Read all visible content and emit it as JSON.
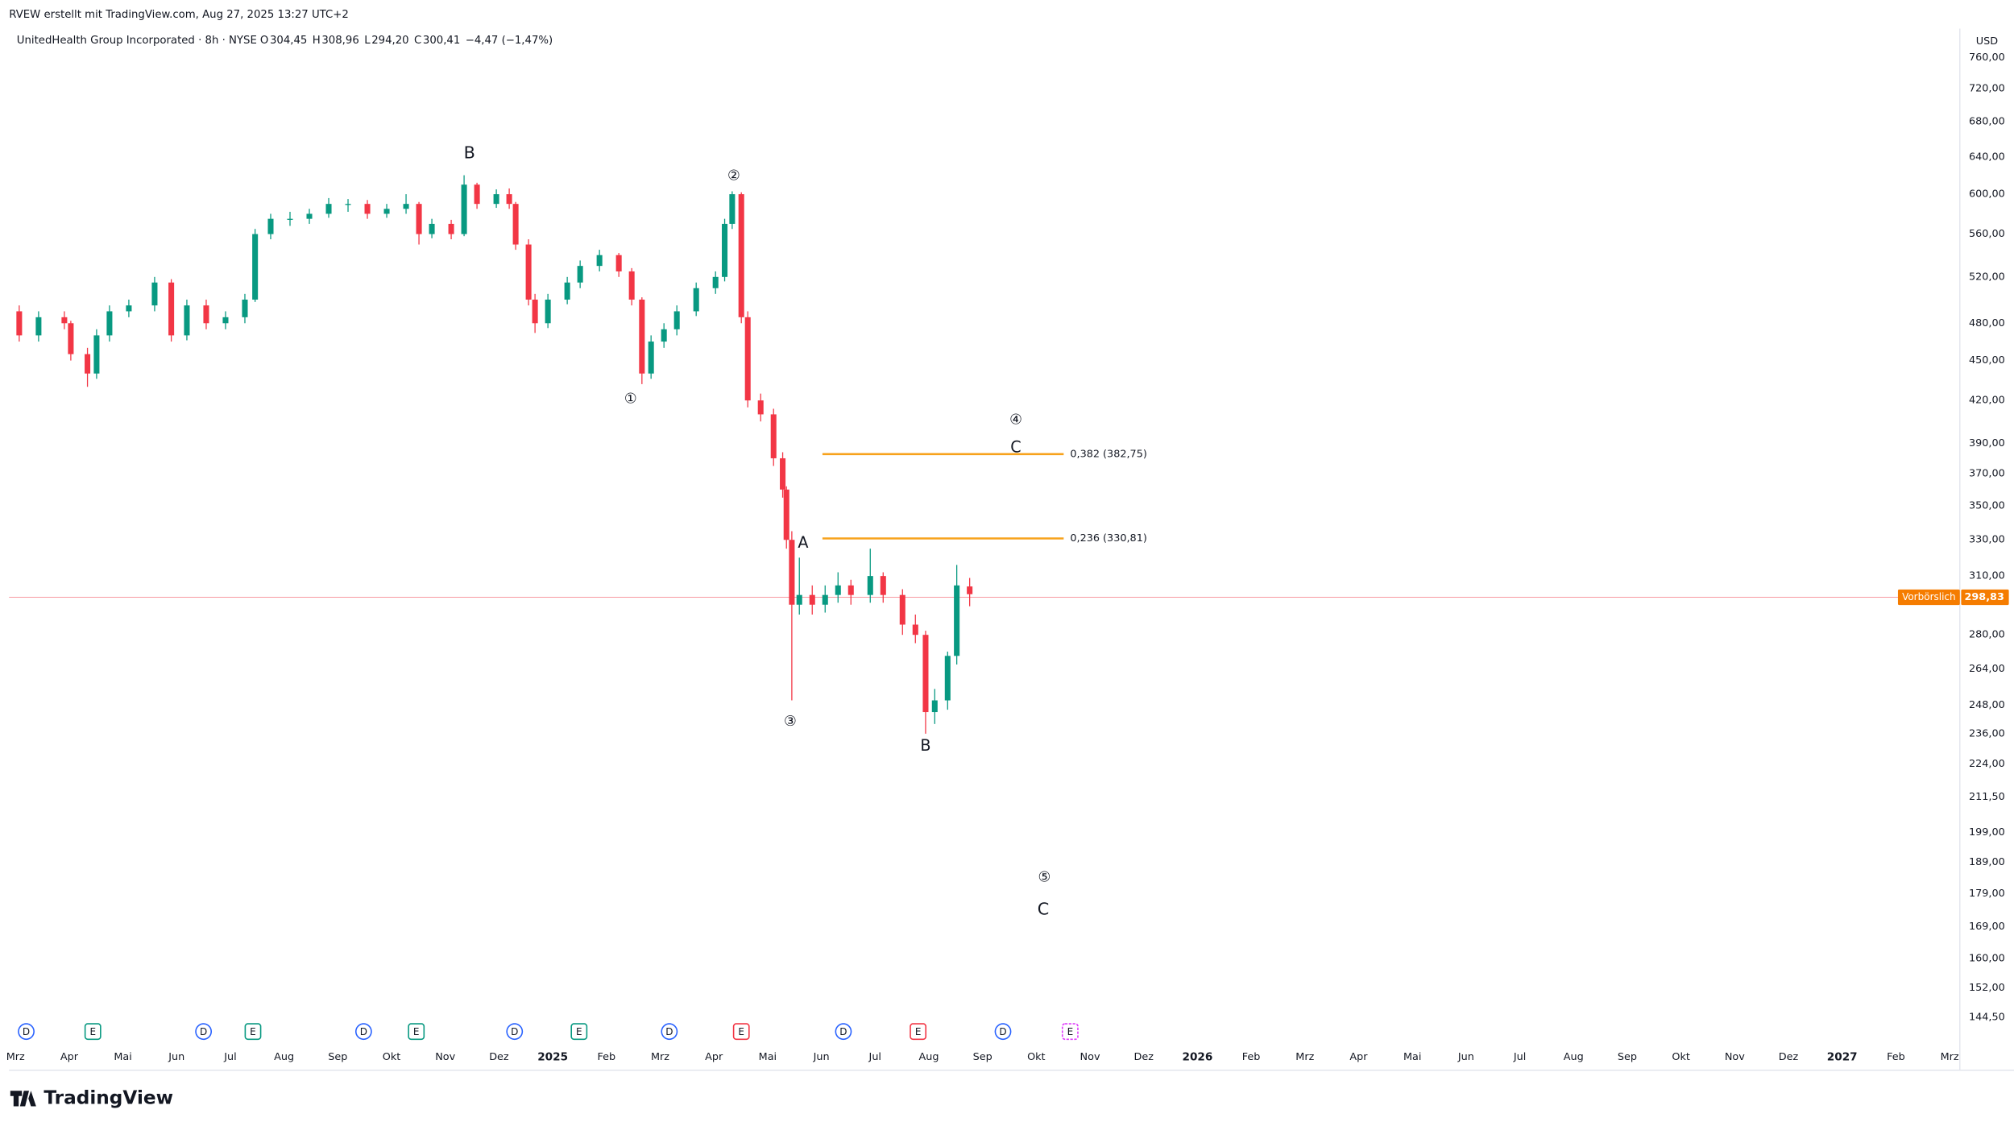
{
  "header": {
    "credit": "RVEW erstellt mit TradingView.com, Aug 27, 2025 13:27 UTC+2",
    "symbol": "UnitedHealth Group Incorporated · 8h · NYSE",
    "ohlc": [
      {
        "key": "O",
        "value": "304,45"
      },
      {
        "key": "H",
        "value": "308,96"
      },
      {
        "key": "L",
        "value": "294,20"
      },
      {
        "key": "C",
        "value": "300,41"
      }
    ],
    "change": "−4,47 (−1,47%)",
    "currency": "USD",
    "logo": "TradingView"
  },
  "chart_data": {
    "type": "candlestick",
    "log_scale": true,
    "up_color": "#089981",
    "down_color": "#f23645",
    "xlim": [
      -0.12,
      36.19
    ],
    "xticks": [
      {
        "value": 0,
        "label": "Mrz"
      },
      {
        "value": 1,
        "label": "Apr"
      },
      {
        "value": 2,
        "label": "Mai"
      },
      {
        "value": 3,
        "label": "Jun"
      },
      {
        "value": 4,
        "label": "Jul"
      },
      {
        "value": 5,
        "label": "Aug"
      },
      {
        "value": 6,
        "label": "Sep"
      },
      {
        "value": 7,
        "label": "Okt"
      },
      {
        "value": 8,
        "label": "Nov"
      },
      {
        "value": 9,
        "label": "Dez"
      },
      {
        "value": 10,
        "label": "2025"
      },
      {
        "value": 11,
        "label": "Feb"
      },
      {
        "value": 12,
        "label": "Mrz"
      },
      {
        "value": 13,
        "label": "Apr"
      },
      {
        "value": 14,
        "label": "Mai"
      },
      {
        "value": 15,
        "label": "Jun"
      },
      {
        "value": 16,
        "label": "Jul"
      },
      {
        "value": 17,
        "label": "Aug"
      },
      {
        "value": 18,
        "label": "Sep"
      },
      {
        "value": 19,
        "label": "Okt"
      },
      {
        "value": 20,
        "label": "Nov"
      },
      {
        "value": 21,
        "label": "Dez"
      },
      {
        "value": 22,
        "label": "2026"
      },
      {
        "value": 23,
        "label": "Feb"
      },
      {
        "value": 24,
        "label": "Mrz"
      },
      {
        "value": 25,
        "label": "Apr"
      },
      {
        "value": 26,
        "label": "Mai"
      },
      {
        "value": 27,
        "label": "Jun"
      },
      {
        "value": 28,
        "label": "Jul"
      },
      {
        "value": 29,
        "label": "Aug"
      },
      {
        "value": 30,
        "label": "Sep"
      },
      {
        "value": 31,
        "label": "Okt"
      },
      {
        "value": 32,
        "label": "Nov"
      },
      {
        "value": 33,
        "label": "Dez"
      },
      {
        "value": 34,
        "label": "2027"
      },
      {
        "value": 35,
        "label": "Feb"
      },
      {
        "value": 36,
        "label": "Mrz"
      }
    ],
    "ylim": [
      138.5,
      799
    ],
    "yticks": [
      {
        "value": 144.5,
        "label": "144,50"
      },
      {
        "value": 152,
        "label": "152,00"
      },
      {
        "value": 160,
        "label": "160,00"
      },
      {
        "value": 169,
        "label": "169,00"
      },
      {
        "value": 179,
        "label": "179,00"
      },
      {
        "value": 189,
        "label": "189,00"
      },
      {
        "value": 199,
        "label": "199,00"
      },
      {
        "value": 211.5,
        "label": "211,50"
      },
      {
        "value": 224,
        "label": "224,00"
      },
      {
        "value": 236,
        "label": "236,00"
      },
      {
        "value": 248,
        "label": "248,00"
      },
      {
        "value": 264,
        "label": "264,00"
      },
      {
        "value": 280,
        "label": "280,00"
      },
      {
        "value": 310,
        "label": "310,00"
      },
      {
        "value": 330,
        "label": "330,00"
      },
      {
        "value": 350,
        "label": "350,00"
      },
      {
        "value": 370,
        "label": "370,00"
      },
      {
        "value": 390,
        "label": "390,00"
      },
      {
        "value": 420,
        "label": "420,00"
      },
      {
        "value": 450,
        "label": "450,00"
      },
      {
        "value": 480,
        "label": "480,00"
      },
      {
        "value": 520,
        "label": "520,00"
      },
      {
        "value": 560,
        "label": "560,00"
      },
      {
        "value": 600,
        "label": "600,00"
      },
      {
        "value": 640,
        "label": "640,00"
      },
      {
        "value": 680,
        "label": "680,00"
      },
      {
        "value": 720,
        "label": "720,00"
      },
      {
        "value": 760,
        "label": "760,00"
      }
    ],
    "x": [
      0.07,
      0.43,
      0.91,
      1.03,
      1.34,
      1.51,
      1.75,
      2.11,
      2.59,
      2.9,
      3.19,
      3.55,
      3.91,
      4.27,
      4.46,
      4.75,
      5.11,
      5.47,
      5.83,
      6.19,
      6.55,
      6.91,
      7.27,
      7.51,
      7.75,
      8.11,
      8.35,
      8.59,
      8.95,
      9.19,
      9.31,
      9.55,
      9.67,
      9.91,
      10.27,
      10.51,
      10.87,
      11.23,
      11.47,
      11.66,
      11.83,
      12.07,
      12.31,
      12.67,
      13.03,
      13.2,
      13.34,
      13.51,
      13.63,
      13.87,
      14.11,
      14.28,
      14.35,
      14.45,
      14.59,
      14.83,
      15.07,
      15.31,
      15.55,
      15.91,
      16.15,
      16.51,
      16.75,
      16.94,
      17.11,
      17.35,
      17.52,
      17.76
    ],
    "open": [
      490,
      470,
      485,
      480,
      455,
      440,
      470,
      490,
      495,
      515,
      470,
      495,
      480,
      485,
      500,
      560,
      575,
      575,
      580,
      590,
      590,
      580,
      585,
      590,
      560,
      570,
      560,
      610,
      590,
      600,
      590,
      550,
      500,
      480,
      500,
      515,
      530,
      540,
      525,
      500,
      440,
      465,
      475,
      490,
      510,
      520,
      570,
      600,
      485,
      420,
      410,
      380,
      360,
      330,
      295,
      300,
      295,
      300,
      305,
      300,
      310,
      300,
      285,
      280,
      245,
      250,
      270,
      304.45
    ],
    "high": [
      495,
      490,
      490,
      482,
      460,
      475,
      495,
      500,
      520,
      518,
      500,
      500,
      490,
      505,
      565,
      580,
      582,
      585,
      596,
      595,
      594,
      590,
      600,
      592,
      575,
      574,
      620,
      612,
      605,
      606,
      592,
      555,
      505,
      505,
      520,
      535,
      545,
      542,
      528,
      502,
      470,
      480,
      495,
      515,
      525,
      575,
      603,
      602,
      490,
      425,
      414,
      384,
      362,
      335,
      320,
      305,
      305,
      312,
      308,
      325,
      312,
      303,
      290,
      282,
      255,
      272,
      316,
      308.96
    ],
    "low": [
      465,
      465,
      475,
      450,
      430,
      436,
      465,
      485,
      490,
      465,
      466,
      475,
      475,
      480,
      498,
      555,
      568,
      570,
      576,
      582,
      575,
      576,
      580,
      550,
      556,
      555,
      558,
      585,
      586,
      585,
      545,
      495,
      472,
      476,
      496,
      510,
      525,
      520,
      495,
      432,
      436,
      460,
      470,
      486,
      505,
      516,
      565,
      480,
      415,
      405,
      375,
      355,
      325,
      250,
      290,
      290,
      291,
      296,
      295,
      296,
      296,
      280,
      276,
      236,
      240,
      246,
      266,
      294.2
    ],
    "close": [
      470,
      485,
      480,
      455,
      440,
      470,
      490,
      495,
      515,
      470,
      495,
      480,
      485,
      500,
      560,
      575,
      575,
      580,
      590,
      590,
      580,
      585,
      590,
      560,
      570,
      560,
      610,
      590,
      600,
      590,
      550,
      500,
      480,
      500,
      515,
      530,
      540,
      525,
      500,
      440,
      465,
      475,
      490,
      510,
      520,
      570,
      600,
      485,
      420,
      410,
      380,
      360,
      330,
      295,
      300,
      295,
      300,
      305,
      300,
      310,
      300,
      285,
      280,
      245,
      250,
      270,
      305,
      300.41
    ],
    "last_price": {
      "value": 298.83,
      "label": "298,83",
      "tag": "Vorbörslich"
    },
    "fib_levels": [
      {
        "label": "0,236 (330,81)",
        "price": 330.81,
        "x_start": 15.02,
        "x_end": 19.51
      },
      {
        "label": "0,382 (382,75)",
        "price": 382.75,
        "x_start": 15.02,
        "x_end": 19.51
      }
    ],
    "fib_color": "#f7a21b",
    "annotations": [
      {
        "text": "B",
        "x": 8.45,
        "price": 644,
        "color": "#2962ff",
        "size": "large"
      },
      {
        "text": "②",
        "x": 13.37,
        "price": 619,
        "color": "#131722",
        "size": "small"
      },
      {
        "text": "①",
        "x": 11.45,
        "price": 421,
        "color": "#131722",
        "size": "small"
      },
      {
        "text": "④",
        "x": 18.62,
        "price": 406,
        "color": "#131722",
        "size": "small"
      },
      {
        "text": "C",
        "x": 18.62,
        "price": 387,
        "color": "#089981",
        "size": "medium"
      },
      {
        "text": "A",
        "x": 14.66,
        "price": 328,
        "color": "#089981",
        "size": "medium"
      },
      {
        "text": "③",
        "x": 14.42,
        "price": 241,
        "color": "#131722",
        "size": "small"
      },
      {
        "text": "B",
        "x": 16.94,
        "price": 231,
        "color": "#089981",
        "size": "medium"
      },
      {
        "text": "⑤",
        "x": 19.15,
        "price": 184,
        "color": "#131722",
        "size": "small"
      },
      {
        "text": "C",
        "x": 19.13,
        "price": 174,
        "color": "#2962ff",
        "size": "large"
      }
    ],
    "events": [
      {
        "label": "D",
        "x": 0.2,
        "color": "#2962ff"
      },
      {
        "label": "E",
        "x": 1.44,
        "color": "#089981"
      },
      {
        "label": "D",
        "x": 3.5,
        "color": "#2962ff"
      },
      {
        "label": "E",
        "x": 4.42,
        "color": "#089981"
      },
      {
        "label": "D",
        "x": 6.48,
        "color": "#2962ff"
      },
      {
        "label": "E",
        "x": 7.46,
        "color": "#089981"
      },
      {
        "label": "D",
        "x": 9.29,
        "color": "#2962ff"
      },
      {
        "label": "E",
        "x": 10.49,
        "color": "#089981"
      },
      {
        "label": "D",
        "x": 12.17,
        "color": "#2962ff"
      },
      {
        "label": "E",
        "x": 13.51,
        "color": "#f23645"
      },
      {
        "label": "D",
        "x": 15.41,
        "color": "#2962ff"
      },
      {
        "label": "E",
        "x": 16.8,
        "color": "#f23645"
      },
      {
        "label": "D",
        "x": 18.38,
        "color": "#2962ff"
      },
      {
        "label": "E",
        "x": 19.63,
        "color": "#e040fb"
      }
    ]
  }
}
